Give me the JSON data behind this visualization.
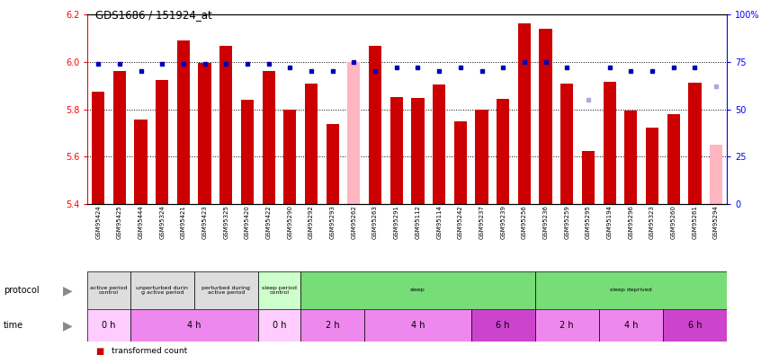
{
  "title": "GDS1686 / 151924_at",
  "samples": [
    "GSM95424",
    "GSM95425",
    "GSM95444",
    "GSM95324",
    "GSM95421",
    "GSM95423",
    "GSM95325",
    "GSM95420",
    "GSM95422",
    "GSM95290",
    "GSM95292",
    "GSM95293",
    "GSM95262",
    "GSM95263",
    "GSM95291",
    "GSM95112",
    "GSM95114",
    "GSM95242",
    "GSM95237",
    "GSM95239",
    "GSM95256",
    "GSM95236",
    "GSM95259",
    "GSM95295",
    "GSM95194",
    "GSM95296",
    "GSM95323",
    "GSM95260",
    "GSM95261",
    "GSM95294"
  ],
  "bar_values": [
    5.874,
    5.962,
    5.757,
    5.924,
    6.091,
    5.997,
    6.068,
    5.838,
    5.962,
    5.798,
    5.908,
    5.739,
    6.0,
    6.068,
    5.853,
    5.846,
    5.906,
    5.747,
    5.797,
    5.845,
    6.162,
    6.14,
    5.908,
    5.625,
    5.916,
    5.795,
    5.721,
    5.779,
    5.912,
    5.651
  ],
  "bar_absent": [
    false,
    false,
    false,
    false,
    false,
    false,
    false,
    false,
    false,
    false,
    false,
    false,
    true,
    false,
    false,
    false,
    false,
    false,
    false,
    false,
    false,
    false,
    false,
    false,
    false,
    false,
    false,
    false,
    false,
    true
  ],
  "rank_values": [
    74,
    74,
    70,
    74,
    74,
    74,
    74,
    74,
    74,
    72,
    70,
    70,
    75,
    70,
    72,
    72,
    70,
    72,
    70,
    72,
    75,
    75,
    72,
    55,
    72,
    70,
    70,
    72,
    72,
    62
  ],
  "rank_absent": [
    false,
    false,
    false,
    false,
    false,
    false,
    false,
    false,
    false,
    false,
    false,
    false,
    false,
    false,
    false,
    false,
    false,
    false,
    false,
    false,
    false,
    false,
    false,
    true,
    false,
    false,
    false,
    false,
    false,
    true
  ],
  "ylim_left": [
    5.4,
    6.2
  ],
  "ylim_right": [
    0,
    100
  ],
  "yticks_left": [
    5.4,
    5.6,
    5.8,
    6.0,
    6.2
  ],
  "yticks_right": [
    0,
    25,
    50,
    75,
    100
  ],
  "bar_color": "#CC0000",
  "bar_absent_color": "#FFB6C1",
  "rank_color": "#0000BB",
  "rank_absent_color": "#AAAADD",
  "protocol_groups": [
    {
      "label": "active period\ncontrol",
      "start": 0,
      "end": 2,
      "color": "#DDDDDD"
    },
    {
      "label": "unperturbed durin\ng active period",
      "start": 2,
      "end": 5,
      "color": "#DDDDDD"
    },
    {
      "label": "perturbed during\nactive period",
      "start": 5,
      "end": 8,
      "color": "#DDDDDD"
    },
    {
      "label": "sleep period\ncontrol",
      "start": 8,
      "end": 10,
      "color": "#CCFFCC"
    },
    {
      "label": "sleep",
      "start": 10,
      "end": 21,
      "color": "#77DD77"
    },
    {
      "label": "sleep deprived",
      "start": 21,
      "end": 30,
      "color": "#77DD77"
    }
  ],
  "time_groups": [
    {
      "label": "0 h",
      "start": 0,
      "end": 2,
      "color": "#FFCCFF"
    },
    {
      "label": "4 h",
      "start": 2,
      "end": 8,
      "color": "#EE88EE"
    },
    {
      "label": "0 h",
      "start": 8,
      "end": 10,
      "color": "#FFCCFF"
    },
    {
      "label": "2 h",
      "start": 10,
      "end": 13,
      "color": "#EE88EE"
    },
    {
      "label": "4 h",
      "start": 13,
      "end": 18,
      "color": "#EE88EE"
    },
    {
      "label": "6 h",
      "start": 18,
      "end": 21,
      "color": "#CC44CC"
    },
    {
      "label": "2 h",
      "start": 21,
      "end": 24,
      "color": "#EE88EE"
    },
    {
      "label": "4 h",
      "start": 24,
      "end": 27,
      "color": "#EE88EE"
    },
    {
      "label": "6 h",
      "start": 27,
      "end": 30,
      "color": "#CC44CC"
    }
  ]
}
